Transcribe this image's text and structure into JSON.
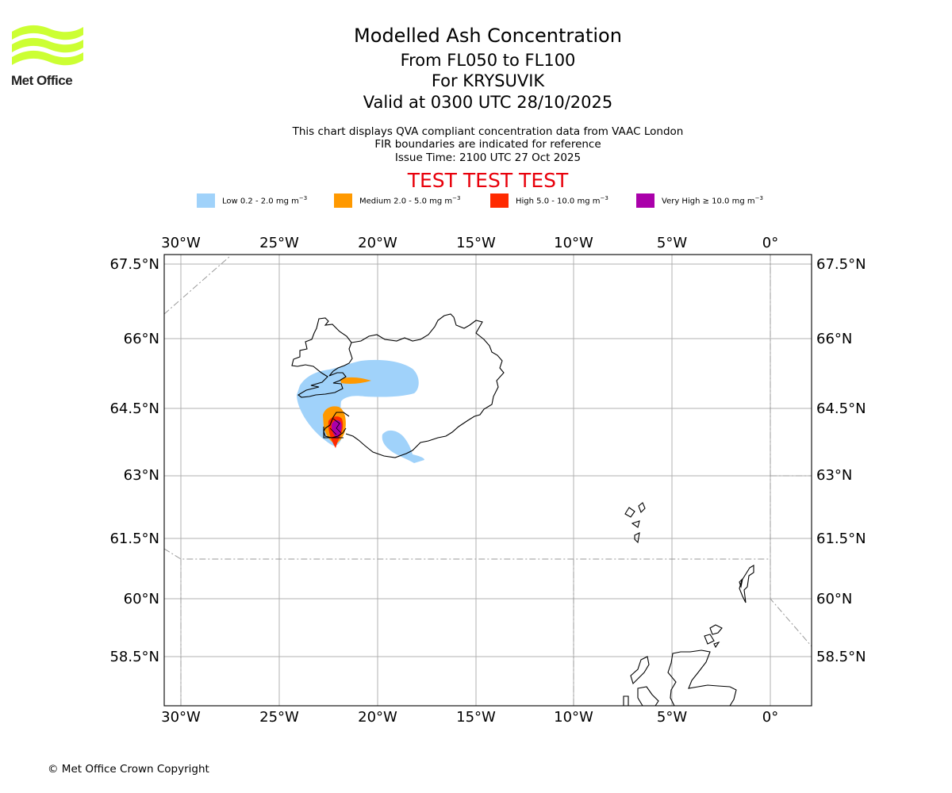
{
  "header": {
    "title": "Modelled Ash Concentration",
    "level": "From FL050 to FL100",
    "volcano": "For KRYSUVIK",
    "valid": "Valid at 0300 UTC 28/10/2025",
    "description_1": "This chart displays QVA compliant concentration data from VAAC London",
    "description_2": "FIR boundaries are indicated for reference",
    "issue_time": "Issue Time: 2100 UTC 27 Oct 2025",
    "test_banner": "TEST TEST TEST"
  },
  "logo": {
    "text": "Met Office",
    "icon": "met-office-wave-logo",
    "color": "#ccff33"
  },
  "legend": [
    {
      "label": "Low 0.2 - 2.0 mg m",
      "sup": "−3",
      "color": "#a0d2fa"
    },
    {
      "label": "Medium 2.0 - 5.0 mg m",
      "sup": "−3",
      "color": "#ff9900"
    },
    {
      "label": "High 5.0 - 10.0 mg m",
      "sup": "−3",
      "color": "#ff2a00"
    },
    {
      "label": "Very High ≥ 10.0 mg m",
      "sup": "−3",
      "color": "#aa00aa"
    }
  ],
  "map": {
    "lon_ticks": [
      "30°W",
      "25°W",
      "20°W",
      "15°W",
      "10°W",
      "5°W",
      "0°"
    ],
    "lat_ticks": [
      "67.5°N",
      "66°N",
      "64.5°N",
      "63°N",
      "61.5°N",
      "60°N",
      "58.5°N"
    ],
    "gridline_color": "#b0b0b0",
    "coast_color": "#000000",
    "fir_color": "#999999"
  },
  "footer": {
    "copyright": "© Met Office Crown Copyright"
  }
}
